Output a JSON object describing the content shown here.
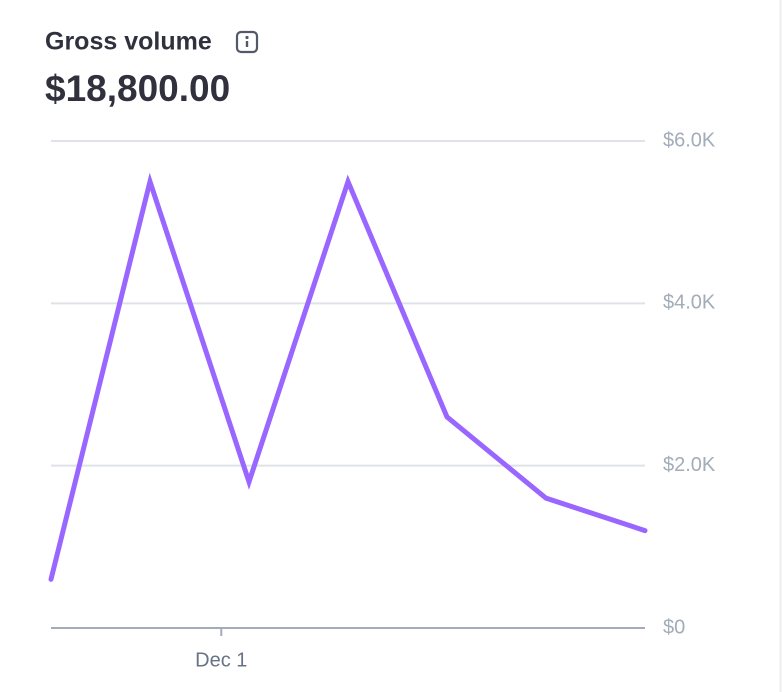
{
  "chart_data": {
    "type": "line",
    "title": "Gross volume",
    "subtitle": "$18,800.00",
    "categories": [
      null,
      null,
      null,
      null,
      null,
      null,
      null
    ],
    "xlim": [
      0,
      6
    ],
    "xticks": [
      {
        "value": 1.72,
        "label": "Dec 1"
      }
    ],
    "series": [
      {
        "name": "Gross volume",
        "color": "#9966ff",
        "values": [
          600,
          5500,
          1800,
          5500,
          2600,
          1600,
          1200
        ]
      }
    ],
    "ylim": [
      0,
      6000
    ],
    "yticks": [
      {
        "value": 0,
        "label": "$0"
      },
      {
        "value": 2000,
        "label": "$2.0K"
      },
      {
        "value": 4000,
        "label": "$4.0K"
      },
      {
        "value": 6000,
        "label": "$6.0K"
      }
    ],
    "grid": true
  }
}
